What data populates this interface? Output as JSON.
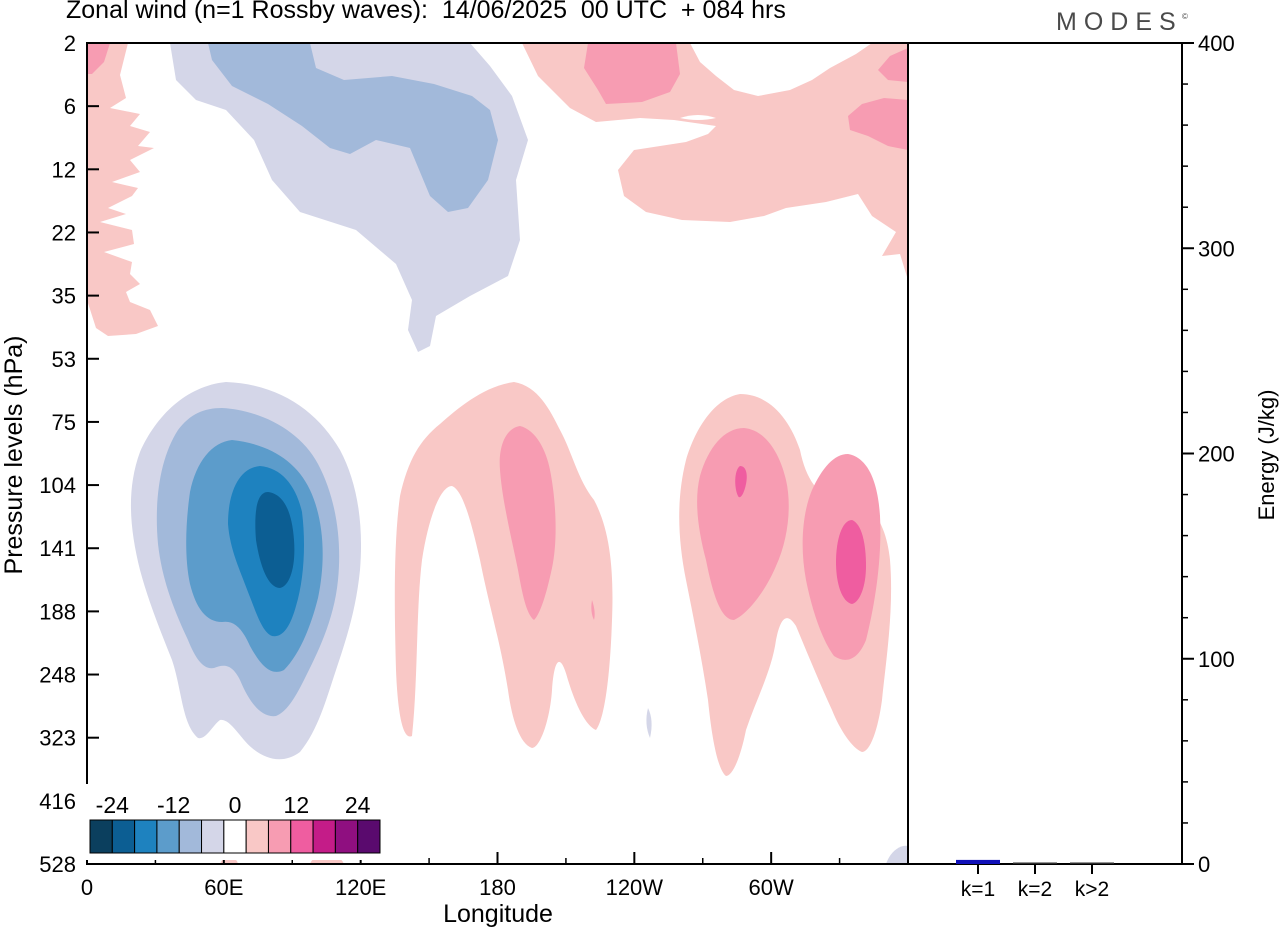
{
  "title": "Zonal wind (n=1 Rossby waves):  14/06/2025  00 UTC  + 084 hrs",
  "logo": "MODES",
  "logo_mark": "©",
  "chart_data": [
    {
      "type": "heatmap",
      "title": "Zonal wind (n=1 Rossby waves):  14/06/2025  00 UTC  + 084 hrs",
      "xlabel": "Longitude",
      "ylabel": "Pressure levels (hPa)",
      "x_ticks": [
        "0",
        "60E",
        "120E",
        "180",
        "120W",
        "60W"
      ],
      "x_tick_degrees": [
        0,
        60,
        120,
        180,
        240,
        300
      ],
      "xlim": [
        0,
        360
      ],
      "y_ticks": [
        "2",
        "6",
        "12",
        "22",
        "35",
        "53",
        "75",
        "104",
        "141",
        "188",
        "248",
        "323",
        "416",
        "528"
      ],
      "colorbar": {
        "tick_labels": [
          "-24",
          "-12",
          "0",
          "12",
          "24"
        ],
        "colors": [
          "#0b3f5e",
          "#0c5e93",
          "#1e82bf",
          "#5c9ccb",
          "#a2b9da",
          "#d4d6e8",
          "#ffffff",
          "#f9c8c6",
          "#f79cb2",
          "#ef5da0",
          "#c41c88",
          "#8f0f80",
          "#5a0a6e"
        ]
      },
      "features": [
        {
          "label": "negative",
          "lon": 78,
          "level": "141",
          "peak": -24
        },
        {
          "label": "positive",
          "lon": 185,
          "level": "104",
          "peak": 12
        },
        {
          "label": "positive",
          "lon": 285,
          "level": "104",
          "peak": 16
        },
        {
          "label": "positive",
          "lon": 335,
          "level": "141",
          "peak": 20
        },
        {
          "label": "negative",
          "lon": 90,
          "level": "6",
          "peak": -12
        },
        {
          "label": "positive",
          "lon": 350,
          "level": "6",
          "peak": 12
        }
      ]
    },
    {
      "type": "bar",
      "ylabel": "Energy (J/kg)",
      "ylim": [
        0,
        400
      ],
      "y_ticks": [
        "0",
        "100",
        "200",
        "300",
        "400"
      ],
      "categories": [
        "k=1",
        "k=2",
        "k>2"
      ],
      "values": [
        2,
        0.2,
        0.5
      ],
      "colors": [
        "#1010b8",
        "#2d2d2d",
        "#2d2d2d"
      ]
    }
  ]
}
